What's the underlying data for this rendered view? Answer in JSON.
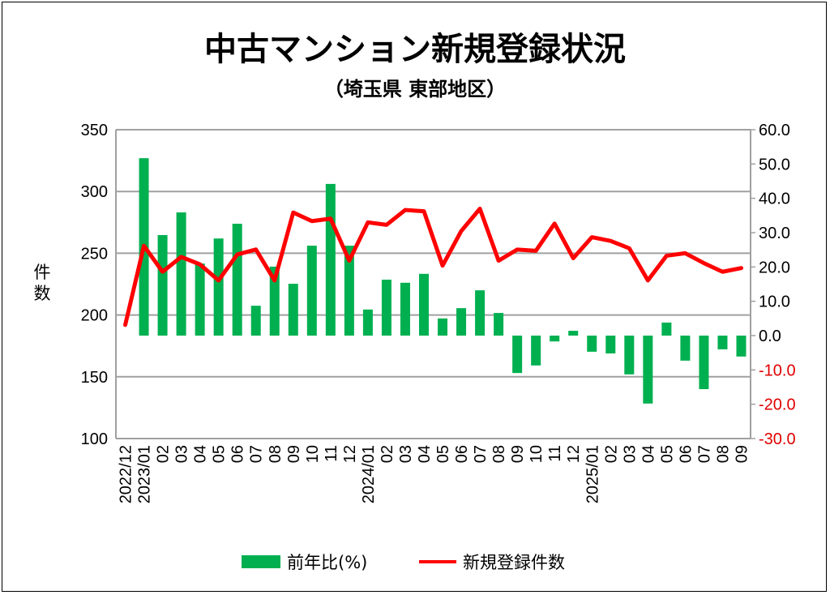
{
  "chart_data": {
    "type": "bar+line",
    "title": "中古マンション新規登録状況",
    "subtitle": "（埼玉県 東部地区）",
    "ylabel": "件数",
    "ylim": [
      100,
      350
    ],
    "yticks": [
      "350",
      "300",
      "250",
      "200",
      "150",
      "100"
    ],
    "y2lim": [
      -30,
      60
    ],
    "y2ticks": [
      "60.0",
      "50.0",
      "40.0",
      "30.0",
      "20.0",
      "10.0",
      "0.0",
      "-10.0",
      "-20.0",
      "-30.0"
    ],
    "grid": true,
    "legend_position": "bottom",
    "categories": [
      "2022/12",
      "2023/01",
      "02",
      "03",
      "04",
      "05",
      "06",
      "07",
      "08",
      "09",
      "10",
      "11",
      "12",
      "2024/01",
      "02",
      "03",
      "04",
      "05",
      "06",
      "07",
      "08",
      "09",
      "10",
      "11",
      "12",
      "2025/01",
      "02",
      "03",
      "04",
      "05",
      "06",
      "07",
      "08",
      "09"
    ],
    "series": [
      {
        "name": "前年比(%)",
        "type": "bar",
        "axis": "right",
        "color": "#00b050",
        "values": [
          null,
          51.7,
          29.3,
          35.9,
          21.0,
          28.3,
          32.6,
          8.7,
          20.1,
          15.1,
          26.2,
          44.2,
          26.2,
          7.6,
          16.3,
          15.4,
          18.0,
          5.0,
          8.0,
          13.2,
          6.6,
          -10.9,
          -8.7,
          -1.7,
          1.4,
          -4.7,
          -5.2,
          -11.3,
          -19.8,
          3.8,
          -7.3,
          -15.6,
          -4.0,
          -6.1
        ]
      },
      {
        "name": "新規登録件数",
        "type": "line",
        "axis": "left",
        "color": "#ff0000",
        "values": [
          192,
          256,
          235,
          247,
          241,
          228,
          249,
          253,
          228,
          283,
          276,
          278,
          244,
          275,
          273,
          285,
          284,
          240,
          268,
          286,
          244,
          253,
          252,
          274,
          246,
          263,
          260,
          254,
          228,
          248,
          250,
          242,
          235,
          238
        ]
      }
    ]
  }
}
